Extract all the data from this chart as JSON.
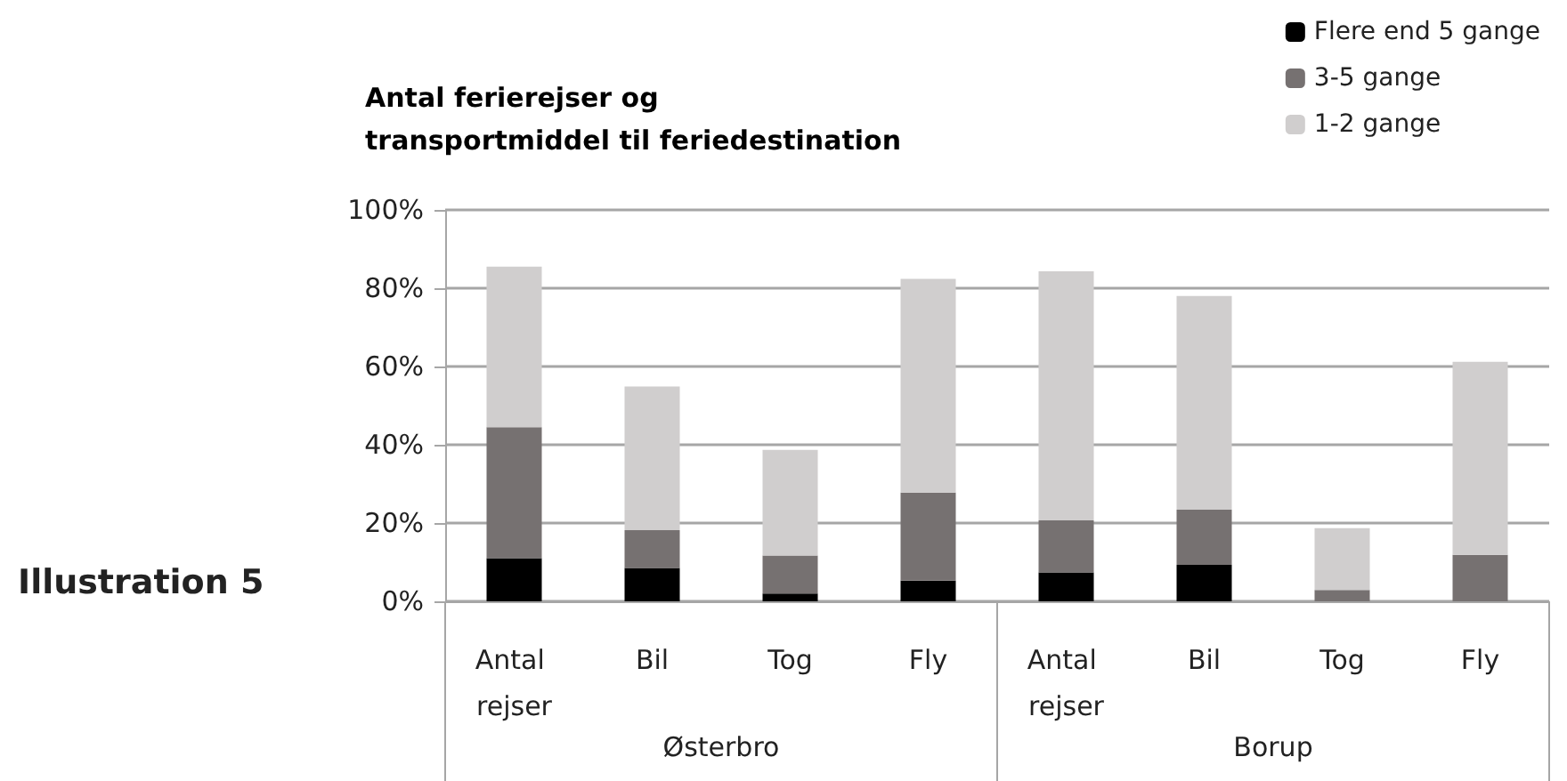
{
  "chart_data": {
    "type": "bar",
    "title": "Antal ferierejser og\ntransportmiddel til feriedestination",
    "categories": [
      "Antal rejser",
      "Bil",
      "Tog",
      "Fly",
      "Antal rejser",
      "Bil",
      "Tog",
      "Fly"
    ],
    "series": [
      {
        "name": "Flere end 5 gange",
        "color": "#000000",
        "values": [
          11,
          8.5,
          2,
          5.3,
          7.4,
          9.3,
          0,
          0
        ]
      },
      {
        "name": "3-5 gange",
        "color": "#767171",
        "values": [
          33.5,
          9.7,
          9.7,
          22.5,
          13.3,
          14.1,
          2.9,
          11.9
        ]
      },
      {
        "name": "1-2 gange",
        "color": "#d0cece",
        "values": [
          41,
          36.7,
          27,
          54.6,
          63.6,
          54.6,
          15.8,
          49.3
        ]
      }
    ],
    "stacked": true,
    "ylim": [
      0,
      100
    ],
    "yticks": [
      {
        "value": 0,
        "label": "0%"
      },
      {
        "value": 20,
        "label": "20%"
      },
      {
        "value": 40,
        "label": "40%"
      },
      {
        "value": 60,
        "label": "60%"
      },
      {
        "value": 80,
        "label": "80%"
      },
      {
        "value": 100,
        "label": "100%"
      }
    ],
    "grid": "y",
    "legend": "top right",
    "annotations": [
      "Illustration 5",
      "Østerbro",
      "Borup"
    ]
  }
}
